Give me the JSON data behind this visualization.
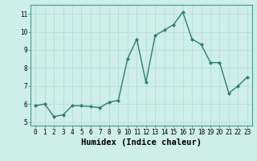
{
  "x": [
    0,
    1,
    2,
    3,
    4,
    5,
    6,
    7,
    8,
    9,
    10,
    11,
    12,
    13,
    14,
    15,
    16,
    17,
    18,
    19,
    20,
    21,
    22,
    23
  ],
  "y": [
    5.9,
    6.0,
    5.3,
    5.4,
    5.9,
    5.9,
    5.85,
    5.8,
    6.1,
    6.2,
    8.5,
    9.6,
    7.2,
    9.8,
    10.1,
    10.4,
    11.1,
    9.6,
    9.3,
    8.3,
    8.3,
    6.6,
    7.0,
    7.5
  ],
  "xlabel": "Humidex (Indice chaleur)",
  "ylim": [
    4.8,
    11.5
  ],
  "xlim": [
    -0.5,
    23.5
  ],
  "yticks": [
    5,
    6,
    7,
    8,
    9,
    10,
    11
  ],
  "xticks": [
    0,
    1,
    2,
    3,
    4,
    5,
    6,
    7,
    8,
    9,
    10,
    11,
    12,
    13,
    14,
    15,
    16,
    17,
    18,
    19,
    20,
    21,
    22,
    23
  ],
  "line_color": "#2e7d6e",
  "marker": "D",
  "markersize": 2.0,
  "bg_color": "#ceeee8",
  "grid_color": "#b8ddd7",
  "tick_label_fontsize": 5.5,
  "xlabel_fontsize": 7.5,
  "linewidth": 1.0
}
